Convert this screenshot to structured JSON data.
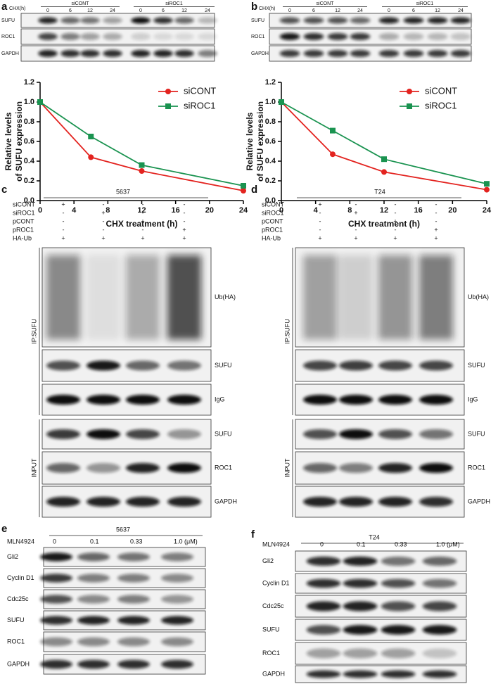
{
  "chart_data": [
    {
      "type": "line",
      "x": [
        0,
        6,
        12,
        24
      ],
      "series": [
        {
          "name": "siCONT",
          "color": "#e3231f",
          "marker": "circle",
          "values": [
            1.0,
            0.44,
            0.3,
            0.1
          ]
        },
        {
          "name": "siROC1",
          "color": "#1a9350",
          "marker": "square",
          "values": [
            1.0,
            0.65,
            0.36,
            0.15
          ]
        }
      ],
      "xlabel": "CHX treatment (h)",
      "ylabel": [
        "Relative levels",
        "of SUFU expression"
      ],
      "xlim": [
        0,
        24
      ],
      "xticks": [
        0,
        4,
        8,
        12,
        16,
        20,
        24
      ],
      "ylim": [
        0,
        1.2
      ],
      "yticks": [
        {
          "value": 0,
          "label": "0.0"
        },
        0.2,
        0.4,
        0.6,
        0.8,
        {
          "value": 1,
          "label": "1.0"
        },
        1.2
      ],
      "legend": "upper right"
    },
    {
      "type": "line",
      "x": [
        0,
        6,
        12,
        24
      ],
      "series": [
        {
          "name": "siCONT",
          "color": "#e3231f",
          "marker": "circle",
          "values": [
            1.0,
            0.47,
            0.29,
            0.11
          ]
        },
        {
          "name": "siROC1",
          "color": "#1a9350",
          "marker": "square",
          "values": [
            1.0,
            0.71,
            0.42,
            0.17
          ]
        }
      ],
      "xlabel": "CHX treatment (h)",
      "ylabel": [
        "Relative levels",
        "of SUFU expression"
      ],
      "xlim": [
        0,
        24
      ],
      "xticks": [
        0,
        4,
        8,
        12,
        16,
        20,
        24
      ],
      "ylim": [
        0,
        1.2
      ],
      "yticks": [
        {
          "value": 0,
          "label": "0.0"
        },
        0.2,
        0.4,
        0.6,
        0.8,
        {
          "value": 1,
          "label": "1.0"
        },
        1.2
      ],
      "legend": "upper right"
    }
  ],
  "blots": [
    {
      "label": "a",
      "header": "CHX(h)",
      "groups": [
        {
          "name": "siCONT",
          "lanes": [
            "0",
            "6",
            "12",
            "24"
          ]
        },
        {
          "name": "siROC1",
          "lanes": [
            "0",
            "6",
            "12",
            "24"
          ]
        }
      ],
      "rows": [
        "SUFU",
        "ROC1",
        "GAPDH"
      ]
    },
    {
      "label": "b",
      "header": "CHX(h)",
      "groups": [
        {
          "name": "siCONT",
          "lanes": [
            "0",
            "6",
            "12",
            "24"
          ]
        },
        {
          "name": "siROC1",
          "lanes": [
            "0",
            "6",
            "12",
            "24"
          ]
        }
      ],
      "rows": [
        "SUFU",
        "ROC1",
        "GAPDH"
      ]
    },
    {
      "label": "c",
      "cell": "5637",
      "conditions": [
        {
          "name": "siCONT",
          "signs": [
            "+",
            "-",
            "-",
            "-"
          ]
        },
        {
          "name": "siROC1",
          "signs": [
            "-",
            "+",
            "-",
            "-"
          ]
        },
        {
          "name": "pCONT",
          "signs": [
            "-",
            "-",
            "+",
            "-"
          ]
        },
        {
          "name": "pROC1",
          "signs": [
            "-",
            "-",
            "-",
            "+"
          ]
        },
        {
          "name": "HA-Ub",
          "signs": [
            "+",
            "+",
            "+",
            "+"
          ]
        }
      ],
      "ip_label": "IP:SUFU",
      "input_label": "INPUT",
      "rows": [
        "Ub(HA)",
        "SUFU",
        "IgG",
        "SUFU",
        "ROC1",
        "GAPDH"
      ]
    },
    {
      "label": "d",
      "cell": "T24",
      "conditions": [
        {
          "name": "siCONT",
          "signs": [
            "+",
            "-",
            "-",
            "-"
          ]
        },
        {
          "name": "siROC1",
          "signs": [
            "-",
            "+",
            "-",
            "-"
          ]
        },
        {
          "name": "pCONT",
          "signs": [
            "-",
            "-",
            "+",
            "-"
          ]
        },
        {
          "name": "pROC1",
          "signs": [
            "-",
            "-",
            "-",
            "+"
          ]
        },
        {
          "name": "HA-Ub",
          "signs": [
            "+",
            "+",
            "+",
            "+"
          ]
        }
      ],
      "ip_label": "IP:SUFU",
      "input_label": "INPUT",
      "rows": [
        "Ub(HA)",
        "SUFU",
        "IgG",
        "SUFU",
        "ROC1",
        "GAPDH"
      ]
    },
    {
      "label": "e",
      "cell": "5637",
      "treatment": "MLN4924",
      "doses": [
        "0",
        "0.1",
        "0.33",
        "1.0 (μM)"
      ],
      "rows": [
        "Gli2",
        "Cyclin D1",
        "Cdc25c",
        "SUFU",
        "ROC1",
        "GAPDH"
      ]
    },
    {
      "label": "f",
      "cell": "T24",
      "treatment": "MLN4924",
      "doses": [
        "0",
        "0.1",
        "0.33",
        "1.0 (μM)"
      ],
      "rows": [
        "Gli2",
        "Cyclin D1",
        "Cdc25c",
        "SUFU",
        "ROC1",
        "GAPDH"
      ]
    }
  ]
}
